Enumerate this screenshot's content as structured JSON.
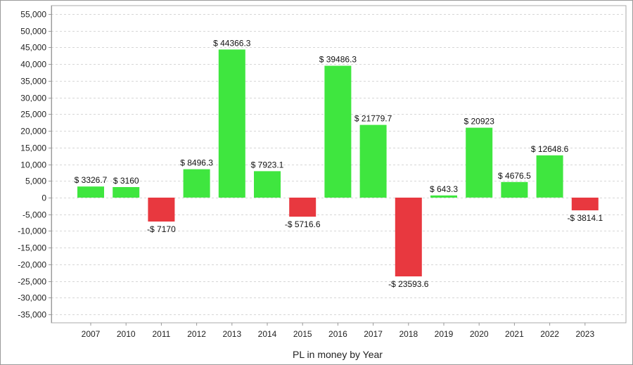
{
  "chart_data": {
    "type": "bar",
    "title": "",
    "xlabel": "PL in money by Year",
    "ylabel": "",
    "ylim": [
      -37500,
      57500
    ],
    "yticks": [
      55000,
      50000,
      45000,
      40000,
      35000,
      30000,
      25000,
      20000,
      15000,
      10000,
      5000,
      0,
      -5000,
      -10000,
      -15000,
      -20000,
      -25000,
      -30000,
      -35000
    ],
    "ytick_labels": [
      "55,000",
      "50,000",
      "45,000",
      "40,000",
      "35,000",
      "30,000",
      "25,000",
      "20,000",
      "15,000",
      "10,000",
      "5,000",
      "0",
      "-5,000",
      "-10,000",
      "-15,000",
      "-20,000",
      "-25,000",
      "-30,000",
      "-35,000"
    ],
    "categories": [
      "2007",
      "2010",
      "2011",
      "2012",
      "2013",
      "2014",
      "2015",
      "2016",
      "2017",
      "2018",
      "2019",
      "2020",
      "2021",
      "2022",
      "2023"
    ],
    "values": [
      3326.7,
      3160,
      -7170,
      8496.3,
      44366.3,
      7923.1,
      -5716.6,
      39486.3,
      21779.7,
      -23593.6,
      643.3,
      20923,
      4676.5,
      12648.6,
      -3814.1
    ],
    "data_labels": [
      "$ 3326.7",
      "$ 3160",
      "-$ 7170",
      "$ 8496.3",
      "$ 44366.3",
      "$ 7923.1",
      "-$ 5716.6",
      "$ 39486.3",
      "$ 21779.7",
      "-$ 23593.6",
      "$ 643.3",
      "$ 20923",
      "$ 4676.5",
      "$ 12648.6",
      "-$ 3814.1"
    ],
    "colors": {
      "positive": "#3fe63f",
      "negative": "#e8383f",
      "grid": "#d6d6d6",
      "axis": "#999999",
      "plot_border": "#a8a8a8"
    },
    "grid": true,
    "legend": "none"
  }
}
